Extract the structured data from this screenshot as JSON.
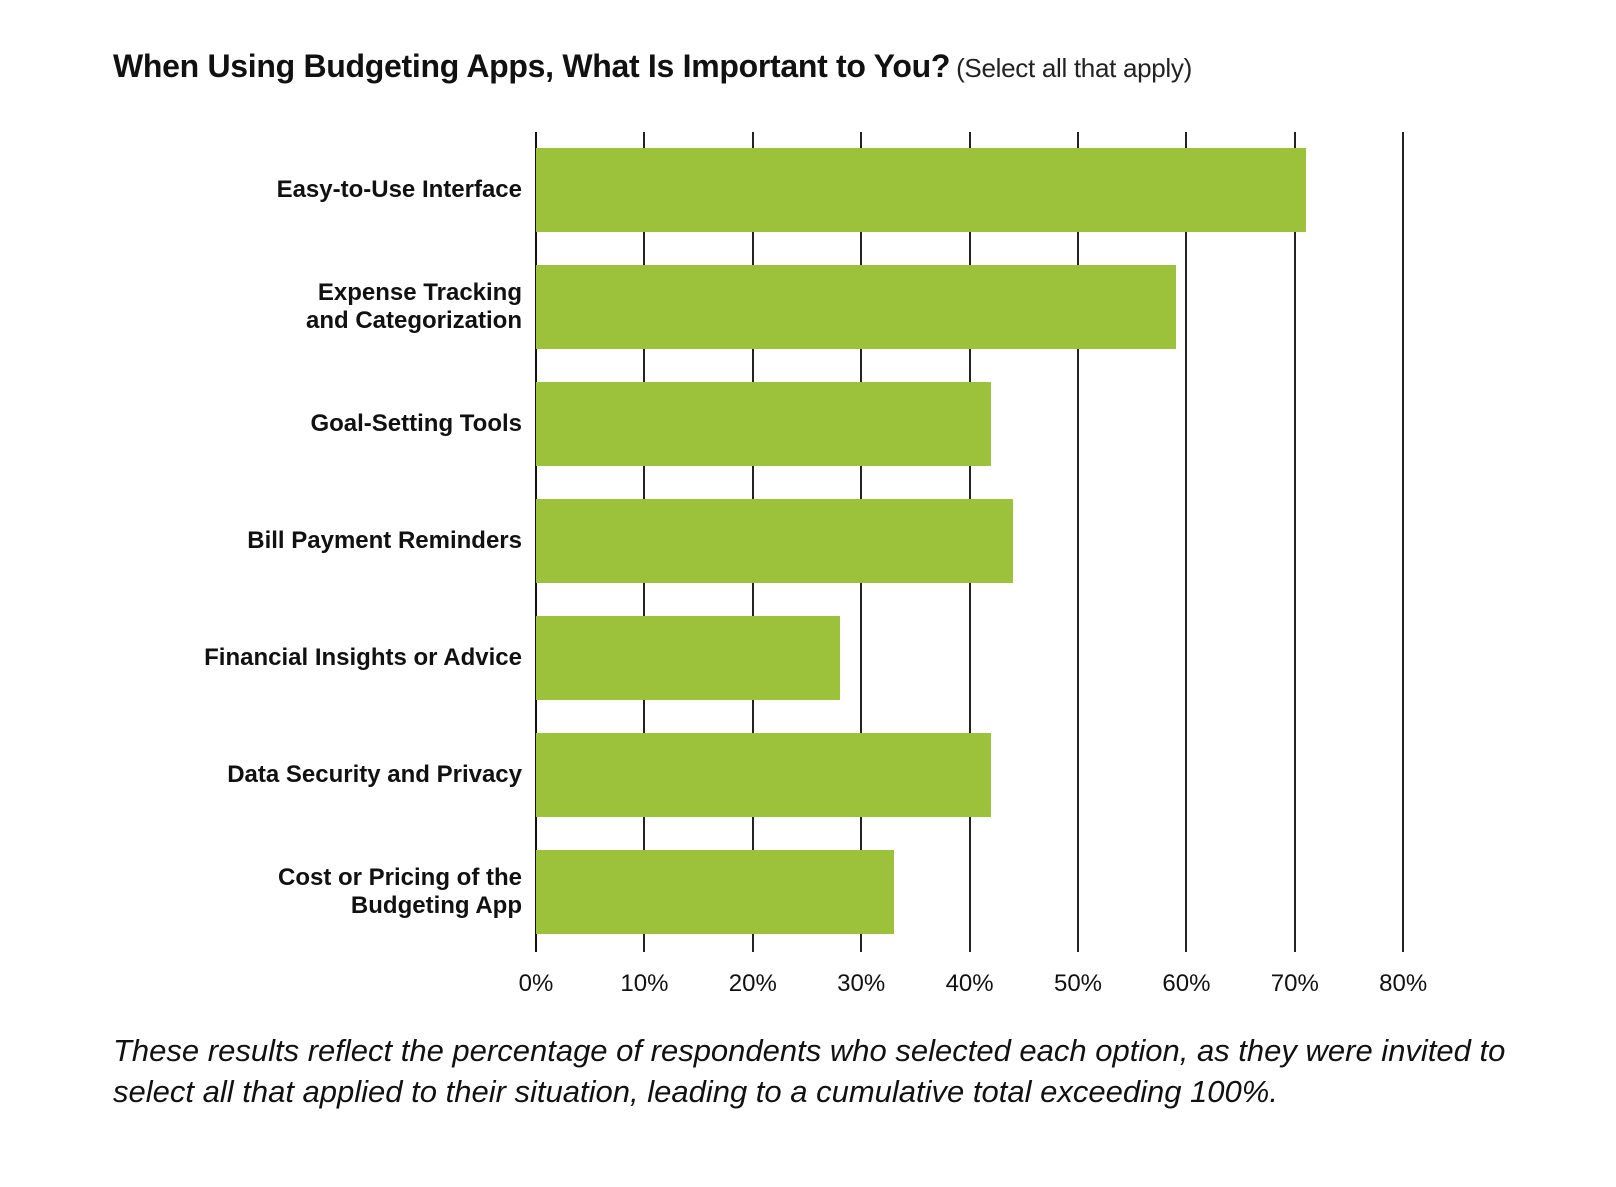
{
  "title": "When Using Budgeting Apps, What Is Important to You?",
  "subtitle": "(Select all that apply)",
  "note": "These results reflect the percentage of respondents who selected each option, as they were invited to select all that applied to their situation, leading to a cumulative total exceeding 100%.",
  "colors": {
    "bar": "#9cc23c",
    "grid": "#222222"
  },
  "ticks": [
    "0%",
    "10%",
    "20%",
    "30%",
    "40%",
    "50%",
    "60%",
    "70%",
    "80%"
  ],
  "chart_data": {
    "type": "bar",
    "orientation": "horizontal",
    "title": "When Using Budgeting Apps, What Is Important to You? (Select all that apply)",
    "categories": [
      "Easy-to-Use Interface",
      "Expense Tracking and Categorization",
      "Goal-Setting Tools",
      "Bill Payment Reminders",
      "Financial Insights or Advice",
      "Data Security and Privacy",
      "Cost or Pricing of the Budgeting App"
    ],
    "values": [
      71,
      59,
      42,
      44,
      28,
      42,
      33
    ],
    "xlabel": "",
    "ylabel": "",
    "xlim": [
      0,
      80
    ],
    "xticks": [
      "0%",
      "10%",
      "20%",
      "30%",
      "40%",
      "50%",
      "60%",
      "70%",
      "80%"
    ],
    "grid": true,
    "legend": null,
    "annotation": "These results reflect the percentage of respondents who selected each option, as they were invited to select all that applied to their situation, leading to a cumulative total exceeding 100%."
  },
  "bars": [
    {
      "label": "Easy-to-Use Interface",
      "value": 71
    },
    {
      "label": "Expense Tracking \nand Categorization",
      "value": 59
    },
    {
      "label": "Goal-Setting Tools",
      "value": 42
    },
    {
      "label": "Bill Payment Reminders",
      "value": 44
    },
    {
      "label": "Financial Insights or Advice",
      "value": 28
    },
    {
      "label": "Data Security and Privacy",
      "value": 42
    },
    {
      "label": "Cost or Pricing of the \nBudgeting App",
      "value": 33
    }
  ]
}
